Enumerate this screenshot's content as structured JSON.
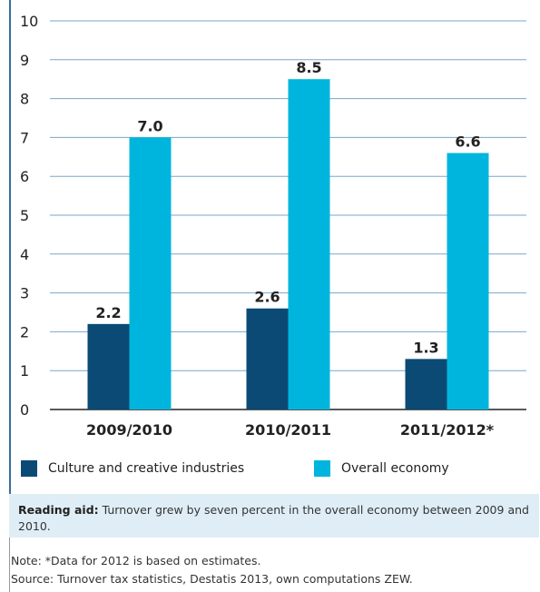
{
  "chart_data": {
    "type": "bar",
    "categories": [
      "2009/2010",
      "2010/2011",
      "2011/2012*"
    ],
    "series": [
      {
        "name": "Culture and creative industries",
        "values": [
          2.2,
          2.6,
          1.3
        ],
        "color": "#0b4a75"
      },
      {
        "name": "Overall economy",
        "values": [
          7.0,
          8.5,
          6.6
        ],
        "color": "#00b5dd"
      }
    ],
    "value_labels": [
      [
        "2.2",
        "2.6",
        "1.3"
      ],
      [
        "7.0",
        "8.5",
        "6.6"
      ]
    ],
    "ylim": [
      0,
      10
    ],
    "yticks": [
      0,
      1,
      2,
      3,
      4,
      5,
      6,
      7,
      8,
      9,
      10
    ],
    "grid": "horizontal",
    "legend": "bottom"
  },
  "reading_aid": {
    "label": "Reading aid:",
    "text": " Turnover grew by seven percent in the overall economy between 2009 and 2010."
  },
  "notes": {
    "note": "Note: *Data for 2012 is based on estimates.",
    "source": "Source: Turnover tax statistics, Destatis 2013, own computations ZEW."
  }
}
